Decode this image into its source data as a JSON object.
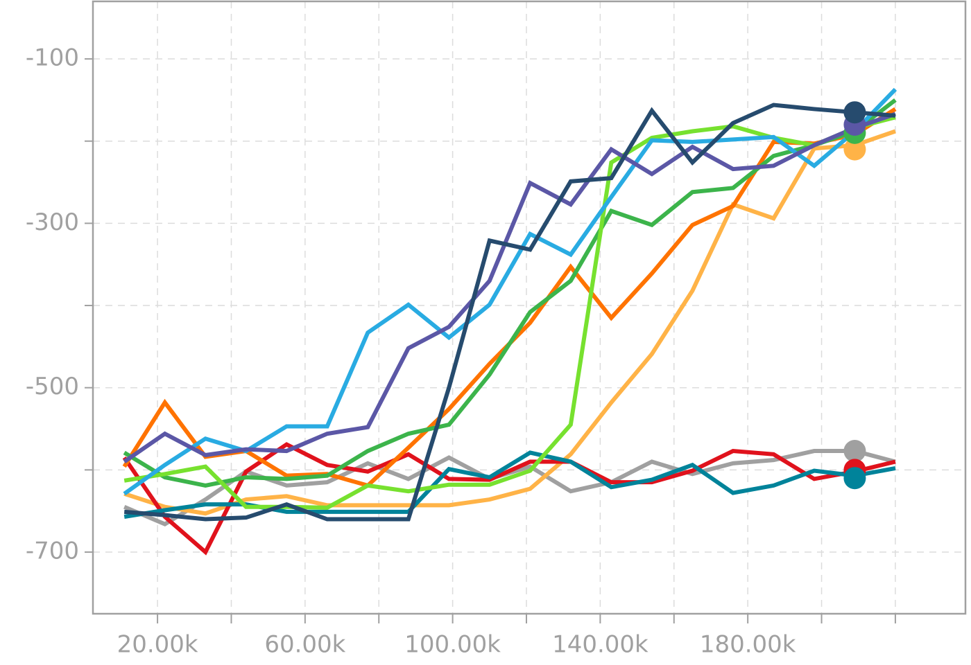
{
  "chart_data": {
    "type": "line",
    "x": [
      11000,
      22000,
      33000,
      44000,
      55000,
      66000,
      77000,
      88000,
      99000,
      110000,
      121000,
      132000,
      143000,
      154000,
      165000,
      176000,
      187000,
      198000,
      209000,
      220000
    ],
    "series": [
      {
        "color": "#a0a0a0",
        "values": [
          -645,
          -666,
          -636,
          -602,
          -619,
          -615,
          -592,
          -611,
          -585,
          -611,
          -596,
          -626,
          -615,
          -590,
          -605,
          -592,
          -588,
          -577,
          -577,
          -590
        ],
        "marker": {
          "x": 209000,
          "y": -577
        }
      },
      {
        "color": "#ffb347",
        "values": [
          -629,
          -645,
          -653,
          -636,
          -632,
          -643,
          -643,
          -643,
          -643,
          -636,
          -623,
          -581,
          -518,
          -459,
          -382,
          -277,
          -294,
          -209,
          -205,
          -188
        ],
        "marker": {
          "x": 209000,
          "y": -210
        }
      },
      {
        "color": "#e0121c",
        "values": [
          -585,
          -657,
          -700,
          -602,
          -569,
          -594,
          -602,
          -581,
          -611,
          -612,
          -590,
          -590,
          -615,
          -615,
          -601,
          -577,
          -581,
          -611,
          -602,
          -590
        ],
        "marker": {
          "x": 209000,
          "y": -600
        }
      },
      {
        "color": "#00839a",
        "values": [
          -657,
          -649,
          -642,
          -642,
          -651,
          -651,
          -651,
          -651,
          -599,
          -609,
          -579,
          -590,
          -621,
          -612,
          -594,
          -628,
          -619,
          -601,
          -607,
          -598
        ],
        "marker": {
          "x": 209000,
          "y": -610
        }
      },
      {
        "color": "#ff7300",
        "values": [
          -596,
          -518,
          -584,
          -577,
          -607,
          -605,
          -619,
          -573,
          -526,
          -471,
          -421,
          -353,
          -415,
          -361,
          -302,
          -279,
          -201,
          -203,
          -192,
          -161
        ]
      },
      {
        "color": "#3cb44b",
        "values": [
          -579,
          -609,
          -619,
          -609,
          -611,
          -607,
          -577,
          -556,
          -545,
          -484,
          -408,
          -370,
          -285,
          -302,
          -262,
          -257,
          -218,
          -205,
          -188,
          -150
        ],
        "marker": {
          "x": 209000,
          "y": -190
        }
      },
      {
        "color": "#77e12f",
        "values": [
          -613,
          -605,
          -596,
          -645,
          -645,
          -646,
          -619,
          -626,
          -618,
          -618,
          -601,
          -545,
          -226,
          -196,
          -188,
          -182,
          -196,
          -205,
          -184,
          -171
        ]
      },
      {
        "color": "#29abe2",
        "values": [
          -629,
          -594,
          -562,
          -577,
          -547,
          -547,
          -433,
          -399,
          -439,
          -399,
          -313,
          -338,
          -268,
          -199,
          -201,
          -198,
          -195,
          -230,
          -188,
          -137
        ]
      },
      {
        "color": "#5b57a6",
        "values": [
          -590,
          -556,
          -582,
          -575,
          -577,
          -556,
          -548,
          -452,
          -426,
          -370,
          -251,
          -277,
          -210,
          -240,
          -207,
          -234,
          -230,
          -205,
          -184,
          -167
        ],
        "marker": {
          "x": 209000,
          "y": -180
        }
      },
      {
        "color": "#264b6e",
        "values": [
          -651,
          -655,
          -660,
          -658,
          -642,
          -660,
          -660,
          -660,
          -500,
          -321,
          -332,
          -249,
          -245,
          -163,
          -226,
          -178,
          -156,
          -161,
          -165,
          -169
        ],
        "marker": {
          "x": 209000,
          "y": -165
        }
      }
    ],
    "xlim": [
      2500,
      239000
    ],
    "xticks": [
      {
        "value": 20000,
        "label": "20.00k"
      },
      {
        "value": 60000,
        "label": "60.00k"
      },
      {
        "value": 100000,
        "label": "100.00k"
      },
      {
        "value": 140000,
        "label": "140.00k"
      },
      {
        "value": 180000,
        "label": "180.00k"
      }
    ],
    "x_minor_ticks": [
      40000,
      80000,
      120000,
      160000,
      200000,
      220000
    ],
    "ylim": [
      -775,
      -30
    ],
    "yticks": [
      -700,
      -500,
      -300,
      -100
    ],
    "y_minor_ticks": [
      -600,
      -400,
      -200
    ],
    "grid": true
  }
}
